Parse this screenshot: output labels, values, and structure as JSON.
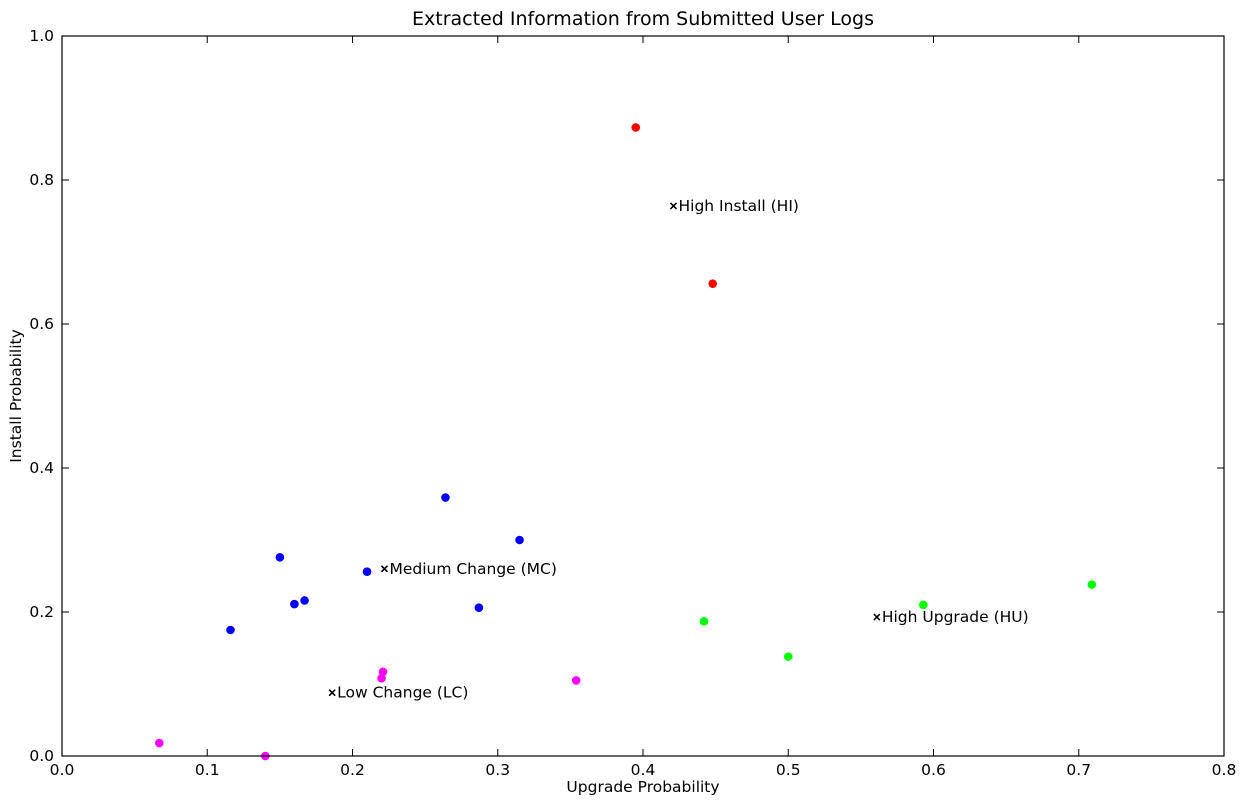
{
  "chart_data": {
    "type": "scatter",
    "title": "Extracted Information from Submitted User Logs",
    "xlabel": "Upgrade Probability",
    "ylabel": "Install Probability",
    "xlim": [
      0.0,
      0.8
    ],
    "ylim": [
      0.0,
      1.0
    ],
    "xticks": [
      "0.0",
      "0.1",
      "0.2",
      "0.3",
      "0.4",
      "0.5",
      "0.6",
      "0.7",
      "0.8"
    ],
    "yticks": [
      "0.0",
      "0.2",
      "0.4",
      "0.6",
      "0.8",
      "1.0"
    ],
    "grid": false,
    "legend": "none",
    "series": [
      {
        "color": "#ff0000",
        "points": [
          [
            0.395,
            0.873
          ],
          [
            0.448,
            0.656
          ]
        ]
      },
      {
        "color": "#0000ff",
        "points": [
          [
            0.264,
            0.359
          ],
          [
            0.315,
            0.3
          ],
          [
            0.15,
            0.276
          ],
          [
            0.21,
            0.256
          ],
          [
            0.167,
            0.216
          ],
          [
            0.16,
            0.211
          ],
          [
            0.287,
            0.206
          ],
          [
            0.116,
            0.175
          ]
        ]
      },
      {
        "color": "#00ff00",
        "points": [
          [
            0.709,
            0.238
          ],
          [
            0.593,
            0.21
          ],
          [
            0.442,
            0.187
          ],
          [
            0.5,
            0.138
          ]
        ]
      },
      {
        "color": "#ff00ff",
        "points": [
          [
            0.221,
            0.117
          ],
          [
            0.22,
            0.108
          ],
          [
            0.354,
            0.105
          ],
          [
            0.067,
            0.018
          ],
          [
            0.14,
            0.0
          ]
        ]
      }
    ],
    "annotations": [
      {
        "text": "High Install (HI)",
        "x": 0.421,
        "y": 0.764
      },
      {
        "text": "Medium Change (MC)",
        "x": 0.222,
        "y": 0.26
      },
      {
        "text": "High Upgrade (HU)",
        "x": 0.561,
        "y": 0.193
      },
      {
        "text": "Low Change (LC)",
        "x": 0.186,
        "y": 0.088
      }
    ]
  }
}
